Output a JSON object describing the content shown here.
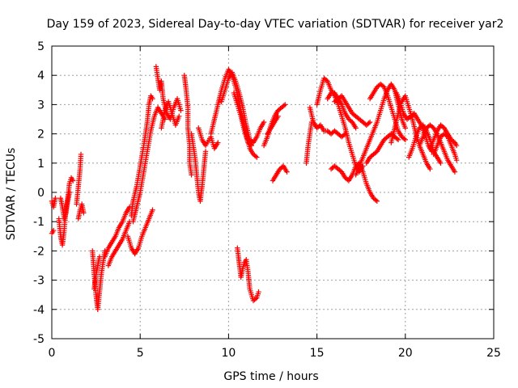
{
  "chart_data": {
    "type": "scatter",
    "title": "Day 159 of 2023, Sidereal Day-to-day VTEC variation (SDTVAR) for receiver yar2",
    "xlabel": "GPS time / hours",
    "ylabel": "SDTVAR / TECUs",
    "xlim": [
      0,
      25
    ],
    "ylim": [
      -5,
      5
    ],
    "x_ticks": [
      "0",
      "5",
      "10",
      "15",
      "20",
      "25"
    ],
    "y_ticks": [
      "-5",
      "-4",
      "-3",
      "-2",
      "-1",
      "0",
      "1",
      "2",
      "3",
      "4",
      "5"
    ],
    "grid": true,
    "marker": "+",
    "color": "#ff0000",
    "segments": [
      [
        [
          0.0,
          -0.3
        ],
        [
          0.1,
          -0.5
        ],
        [
          0.2,
          -0.2
        ]
      ],
      [
        [
          0.0,
          -1.4
        ],
        [
          0.1,
          -1.3
        ]
      ],
      [
        [
          0.4,
          -0.9
        ],
        [
          0.5,
          -1.5
        ],
        [
          0.6,
          -1.8
        ],
        [
          0.7,
          -1.3
        ],
        [
          0.8,
          -0.6
        ],
        [
          0.9,
          -0.2
        ],
        [
          1.0,
          0.3
        ],
        [
          1.1,
          0.5
        ],
        [
          1.2,
          0.4
        ]
      ],
      [
        [
          0.5,
          -0.2
        ],
        [
          0.6,
          -0.5
        ],
        [
          0.7,
          -0.9
        ],
        [
          0.8,
          -0.7
        ],
        [
          0.9,
          -0.3
        ],
        [
          1.0,
          0.0
        ]
      ],
      [
        [
          1.4,
          -0.4
        ],
        [
          1.5,
          0.2
        ],
        [
          1.6,
          0.8
        ],
        [
          1.65,
          1.3
        ]
      ],
      [
        [
          1.5,
          -0.9
        ],
        [
          1.6,
          -0.6
        ],
        [
          1.7,
          -0.4
        ],
        [
          1.8,
          -0.7
        ]
      ],
      [
        [
          2.3,
          -2.0
        ],
        [
          2.4,
          -2.8
        ],
        [
          2.5,
          -3.5
        ],
        [
          2.6,
          -4.0
        ],
        [
          2.7,
          -3.4
        ],
        [
          2.8,
          -2.8
        ],
        [
          2.9,
          -2.4
        ],
        [
          3.0,
          -2.0
        ]
      ],
      [
        [
          2.4,
          -3.3
        ],
        [
          2.5,
          -2.8
        ],
        [
          2.6,
          -2.5
        ],
        [
          2.7,
          -2.2
        ]
      ],
      [
        [
          3.0,
          -2.2
        ],
        [
          3.2,
          -1.9
        ],
        [
          3.4,
          -1.7
        ],
        [
          3.6,
          -1.5
        ],
        [
          3.8,
          -1.2
        ],
        [
          4.0,
          -1.0
        ],
        [
          4.2,
          -0.7
        ],
        [
          4.4,
          -0.5
        ]
      ],
      [
        [
          3.2,
          -2.5
        ],
        [
          3.4,
          -2.2
        ],
        [
          3.6,
          -2.0
        ],
        [
          3.8,
          -1.8
        ],
        [
          4.0,
          -1.6
        ],
        [
          4.2,
          -1.3
        ],
        [
          4.4,
          -1.0
        ]
      ],
      [
        [
          4.3,
          -1.5
        ],
        [
          4.5,
          -1.9
        ],
        [
          4.7,
          -2.1
        ],
        [
          4.9,
          -1.9
        ],
        [
          5.1,
          -1.5
        ],
        [
          5.3,
          -1.2
        ],
        [
          5.5,
          -0.9
        ],
        [
          5.7,
          -0.6
        ]
      ],
      [
        [
          4.5,
          -0.8
        ],
        [
          4.6,
          -0.3
        ],
        [
          4.8,
          0.2
        ],
        [
          5.0,
          0.9
        ],
        [
          5.2,
          1.6
        ],
        [
          5.4,
          2.4
        ],
        [
          5.5,
          3.0
        ],
        [
          5.6,
          3.3
        ],
        [
          5.7,
          3.2
        ]
      ],
      [
        [
          4.6,
          -1.0
        ],
        [
          4.8,
          -0.5
        ],
        [
          5.0,
          0.0
        ],
        [
          5.2,
          0.7
        ],
        [
          5.4,
          1.4
        ],
        [
          5.6,
          2.1
        ],
        [
          5.8,
          2.6
        ],
        [
          6.0,
          2.9
        ],
        [
          6.2,
          2.7
        ],
        [
          6.4,
          2.5
        ]
      ],
      [
        [
          5.9,
          4.3
        ],
        [
          6.0,
          3.9
        ],
        [
          6.1,
          3.5
        ],
        [
          6.2,
          3.8
        ],
        [
          6.3,
          3.2
        ],
        [
          6.5,
          2.7
        ],
        [
          6.7,
          2.5
        ],
        [
          6.9,
          2.9
        ],
        [
          7.1,
          3.2
        ],
        [
          7.3,
          2.8
        ]
      ],
      [
        [
          6.2,
          2.2
        ],
        [
          6.4,
          2.8
        ],
        [
          6.6,
          3.1
        ],
        [
          6.8,
          2.7
        ],
        [
          7.0,
          2.3
        ],
        [
          7.2,
          2.6
        ]
      ],
      [
        [
          7.5,
          4.0
        ],
        [
          7.6,
          3.5
        ],
        [
          7.7,
          2.9
        ],
        [
          7.7,
          2.2
        ],
        [
          7.8,
          1.6
        ],
        [
          7.8,
          1.0
        ],
        [
          7.9,
          0.6
        ]
      ],
      [
        [
          7.9,
          2.0
        ],
        [
          8.0,
          1.6
        ],
        [
          8.1,
          1.2
        ],
        [
          8.2,
          0.6
        ],
        [
          8.3,
          0.0
        ],
        [
          8.4,
          -0.3
        ],
        [
          8.5,
          0.2
        ],
        [
          8.6,
          0.8
        ],
        [
          8.7,
          1.4
        ]
      ],
      [
        [
          8.3,
          2.2
        ],
        [
          8.5,
          1.8
        ],
        [
          8.7,
          1.6
        ],
        [
          9.0,
          1.9
        ],
        [
          9.2,
          1.5
        ],
        [
          9.4,
          1.7
        ]
      ],
      [
        [
          9.0,
          2.0
        ],
        [
          9.2,
          2.5
        ],
        [
          9.4,
          3.0
        ],
        [
          9.6,
          3.5
        ],
        [
          9.8,
          3.9
        ],
        [
          10.0,
          4.2
        ],
        [
          10.2,
          4.0
        ],
        [
          10.4,
          3.6
        ],
        [
          10.6,
          3.1
        ],
        [
          10.8,
          2.5
        ],
        [
          11.0,
          2.0
        ],
        [
          11.2,
          1.5
        ],
        [
          11.4,
          1.3
        ],
        [
          11.6,
          1.2
        ]
      ],
      [
        [
          9.6,
          3.1
        ],
        [
          9.8,
          3.5
        ],
        [
          10.0,
          3.9
        ],
        [
          10.2,
          4.1
        ],
        [
          10.4,
          3.8
        ],
        [
          10.6,
          3.4
        ],
        [
          10.8,
          2.9
        ],
        [
          11.0,
          2.3
        ],
        [
          11.2,
          1.8
        ],
        [
          11.4,
          1.7
        ],
        [
          11.6,
          1.9
        ],
        [
          11.8,
          2.2
        ],
        [
          12.0,
          2.4
        ]
      ],
      [
        [
          10.3,
          3.4
        ],
        [
          10.5,
          3.0
        ],
        [
          10.7,
          2.6
        ],
        [
          10.9,
          2.1
        ],
        [
          11.1,
          1.7
        ],
        [
          11.3,
          1.6
        ]
      ],
      [
        [
          10.5,
          -1.9
        ],
        [
          10.6,
          -2.4
        ],
        [
          10.7,
          -2.9
        ],
        [
          10.8,
          -2.6
        ],
        [
          10.9,
          -2.4
        ],
        [
          11.0,
          -2.3
        ],
        [
          11.1,
          -2.7
        ],
        [
          11.2,
          -3.3
        ],
        [
          11.4,
          -3.7
        ],
        [
          11.6,
          -3.6
        ],
        [
          11.7,
          -3.4
        ]
      ],
      [
        [
          12.0,
          1.6
        ],
        [
          12.2,
          1.9
        ],
        [
          12.4,
          2.3
        ],
        [
          12.6,
          2.6
        ],
        [
          12.8,
          2.8
        ],
        [
          13.0,
          2.9
        ],
        [
          13.2,
          3.0
        ]
      ],
      [
        [
          12.2,
          2.0
        ],
        [
          12.4,
          2.2
        ],
        [
          12.6,
          2.4
        ],
        [
          12.8,
          2.6
        ]
      ],
      [
        [
          12.5,
          0.4
        ],
        [
          12.7,
          0.6
        ],
        [
          12.9,
          0.8
        ],
        [
          13.1,
          0.9
        ],
        [
          13.3,
          0.7
        ]
      ],
      [
        [
          14.4,
          1.0
        ],
        [
          14.5,
          1.6
        ],
        [
          14.6,
          2.0
        ],
        [
          14.7,
          2.4
        ]
      ],
      [
        [
          14.6,
          2.9
        ],
        [
          14.8,
          2.4
        ],
        [
          15.0,
          2.2
        ],
        [
          15.2,
          2.3
        ],
        [
          15.4,
          2.1
        ],
        [
          15.6,
          2.1
        ],
        [
          15.8,
          2.0
        ],
        [
          16.0,
          2.1
        ],
        [
          16.2,
          2.0
        ],
        [
          16.4,
          1.9
        ],
        [
          16.6,
          2.0
        ]
      ],
      [
        [
          15.0,
          3.0
        ],
        [
          15.2,
          3.5
        ],
        [
          15.4,
          3.9
        ],
        [
          15.6,
          3.8
        ],
        [
          15.8,
          3.5
        ],
        [
          16.0,
          3.3
        ],
        [
          16.2,
          3.0
        ],
        [
          16.4,
          2.6
        ],
        [
          16.6,
          2.2
        ],
        [
          16.8,
          1.7
        ],
        [
          17.0,
          1.3
        ],
        [
          17.2,
          0.9
        ],
        [
          17.4,
          0.7
        ],
        [
          17.6,
          0.9
        ]
      ],
      [
        [
          15.6,
          3.2
        ],
        [
          15.8,
          3.4
        ],
        [
          16.0,
          3.4
        ],
        [
          16.2,
          3.2
        ],
        [
          16.4,
          3.0
        ],
        [
          16.6,
          2.7
        ],
        [
          16.8,
          2.5
        ],
        [
          17.0,
          2.4
        ],
        [
          17.2,
          2.2
        ]
      ],
      [
        [
          16.0,
          3.1
        ],
        [
          16.2,
          3.2
        ],
        [
          16.4,
          3.3
        ],
        [
          16.6,
          3.1
        ],
        [
          16.8,
          2.9
        ],
        [
          17.0,
          2.7
        ],
        [
          17.2,
          2.6
        ],
        [
          17.4,
          2.5
        ],
        [
          17.6,
          2.4
        ],
        [
          17.8,
          2.3
        ],
        [
          18.0,
          2.4
        ]
      ],
      [
        [
          15.8,
          0.8
        ],
        [
          16.0,
          0.9
        ],
        [
          16.2,
          0.8
        ],
        [
          16.4,
          0.7
        ],
        [
          16.6,
          0.5
        ],
        [
          16.8,
          0.4
        ],
        [
          17.0,
          0.6
        ],
        [
          17.2,
          0.9
        ],
        [
          17.4,
          1.0
        ],
        [
          17.6,
          0.7
        ],
        [
          17.8,
          0.3
        ],
        [
          18.0,
          0.0
        ],
        [
          18.2,
          -0.2
        ],
        [
          18.4,
          -0.3
        ]
      ],
      [
        [
          17.2,
          0.6
        ],
        [
          17.4,
          0.9
        ],
        [
          17.6,
          1.2
        ],
        [
          17.8,
          1.5
        ],
        [
          18.0,
          1.8
        ],
        [
          18.2,
          2.1
        ],
        [
          18.4,
          2.4
        ],
        [
          18.6,
          2.8
        ],
        [
          18.8,
          3.2
        ],
        [
          19.0,
          3.5
        ],
        [
          19.2,
          3.7
        ],
        [
          19.4,
          3.5
        ],
        [
          19.6,
          3.0
        ],
        [
          19.8,
          2.5
        ],
        [
          20.0,
          2.2
        ]
      ],
      [
        [
          18.0,
          3.2
        ],
        [
          18.2,
          3.4
        ],
        [
          18.4,
          3.6
        ],
        [
          18.6,
          3.7
        ],
        [
          18.8,
          3.6
        ],
        [
          19.0,
          3.3
        ],
        [
          19.2,
          2.9
        ],
        [
          19.4,
          2.5
        ],
        [
          19.6,
          2.1
        ],
        [
          19.8,
          1.9
        ],
        [
          20.0,
          1.8
        ]
      ],
      [
        [
          17.8,
          1.0
        ],
        [
          18.0,
          1.2
        ],
        [
          18.2,
          1.3
        ],
        [
          18.4,
          1.4
        ],
        [
          18.6,
          1.6
        ],
        [
          18.8,
          1.8
        ],
        [
          19.0,
          1.9
        ],
        [
          19.2,
          2.0
        ],
        [
          19.4,
          1.9
        ],
        [
          19.6,
          1.8
        ]
      ],
      [
        [
          19.2,
          1.7
        ],
        [
          19.4,
          2.2
        ],
        [
          19.6,
          2.7
        ],
        [
          19.8,
          3.1
        ],
        [
          20.0,
          3.3
        ],
        [
          20.2,
          2.9
        ],
        [
          20.4,
          2.5
        ],
        [
          20.6,
          2.0
        ],
        [
          20.8,
          1.6
        ],
        [
          21.0,
          1.3
        ],
        [
          21.2,
          1.0
        ],
        [
          21.4,
          0.8
        ]
      ],
      [
        [
          19.5,
          3.4
        ],
        [
          19.7,
          3.1
        ],
        [
          19.9,
          2.7
        ],
        [
          20.1,
          2.5
        ],
        [
          20.3,
          2.6
        ],
        [
          20.5,
          2.7
        ],
        [
          20.7,
          2.5
        ],
        [
          20.9,
          2.3
        ],
        [
          21.1,
          2.0
        ],
        [
          21.3,
          1.6
        ],
        [
          21.5,
          1.4
        ]
      ],
      [
        [
          20.2,
          1.2
        ],
        [
          20.4,
          1.5
        ],
        [
          20.6,
          1.9
        ],
        [
          20.8,
          2.2
        ],
        [
          21.0,
          2.3
        ],
        [
          21.2,
          2.1
        ],
        [
          21.4,
          1.8
        ],
        [
          21.6,
          1.4
        ],
        [
          21.8,
          1.2
        ],
        [
          22.0,
          1.0
        ]
      ],
      [
        [
          20.8,
          1.6
        ],
        [
          21.0,
          1.9
        ],
        [
          21.2,
          2.2
        ],
        [
          21.4,
          2.3
        ],
        [
          21.6,
          2.2
        ],
        [
          21.8,
          2.0
        ],
        [
          22.0,
          1.7
        ],
        [
          22.2,
          1.4
        ],
        [
          22.4,
          1.1
        ],
        [
          22.6,
          0.9
        ],
        [
          22.8,
          0.7
        ]
      ],
      [
        [
          21.4,
          1.5
        ],
        [
          21.6,
          1.8
        ],
        [
          21.8,
          2.1
        ],
        [
          22.0,
          2.3
        ],
        [
          22.2,
          2.2
        ],
        [
          22.4,
          2.0
        ],
        [
          22.6,
          1.8
        ],
        [
          22.8,
          1.7
        ],
        [
          22.9,
          1.6
        ]
      ],
      [
        [
          21.6,
          1.3
        ],
        [
          21.8,
          1.6
        ],
        [
          22.0,
          1.9
        ],
        [
          22.2,
          2.0
        ],
        [
          22.4,
          1.9
        ],
        [
          22.6,
          1.6
        ],
        [
          22.8,
          1.3
        ],
        [
          22.9,
          1.1
        ]
      ]
    ]
  }
}
